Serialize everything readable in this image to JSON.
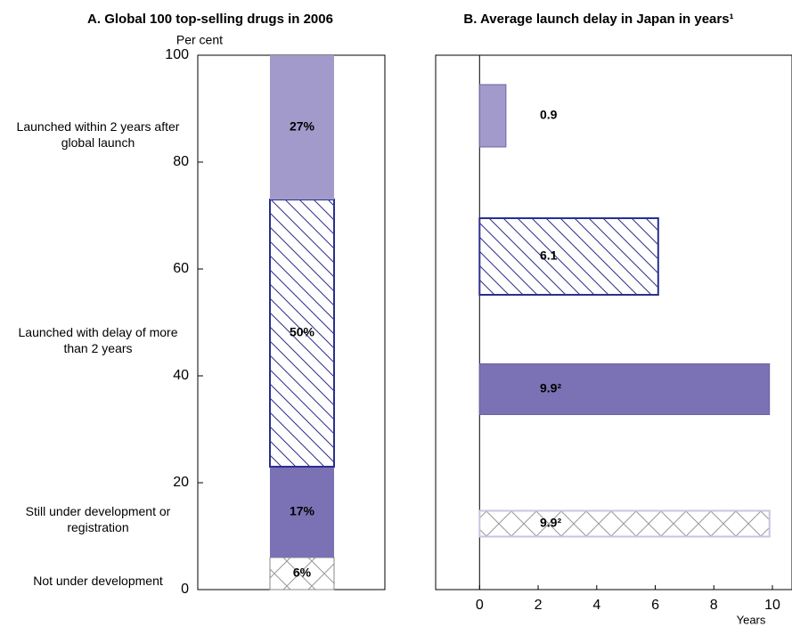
{
  "chart_data": [
    {
      "type": "stacked_bar",
      "title": "A. Global 100 top-selling drugs in 2006",
      "ylabel": "Per cent",
      "ylim": [
        0,
        100
      ],
      "yticks": [
        0,
        20,
        40,
        60,
        80,
        100
      ],
      "series": [
        {
          "name": "Not under development",
          "color": "#999999",
          "pattern": "crosshatch",
          "values": [
            6
          ],
          "value_labels": [
            "6%"
          ]
        },
        {
          "name": "Still under development or registration",
          "color": "#7a72b4",
          "pattern": "solid",
          "values": [
            17
          ],
          "value_labels": [
            "17%"
          ]
        },
        {
          "name": "Launched with delay of more than 2 years",
          "color": "#2b2f8f",
          "pattern": "hatch",
          "values": [
            50
          ],
          "value_labels": [
            "50%"
          ]
        },
        {
          "name": "Launched within 2 years after global launch",
          "color": "#a29acb",
          "pattern": "solid",
          "values": [
            27
          ],
          "value_labels": [
            "27%"
          ]
        }
      ]
    },
    {
      "type": "hbar",
      "title": "B. Average launch delay in Japan in years¹",
      "xlabel": "Years",
      "xlim": [
        -1.5,
        10
      ],
      "xticks": [
        0,
        2,
        4,
        6,
        8,
        10
      ],
      "values": [
        0.9,
        6.1,
        9.9,
        9.9
      ],
      "value_labels": [
        "0.9",
        "6.1",
        "9.9²",
        "9.9²"
      ],
      "colors": [
        "#a29acb",
        "#2b2f8f",
        "#7a72b4",
        "#999999"
      ],
      "patterns": [
        "solid",
        "hatch",
        "solid",
        "crosshatch"
      ]
    }
  ]
}
